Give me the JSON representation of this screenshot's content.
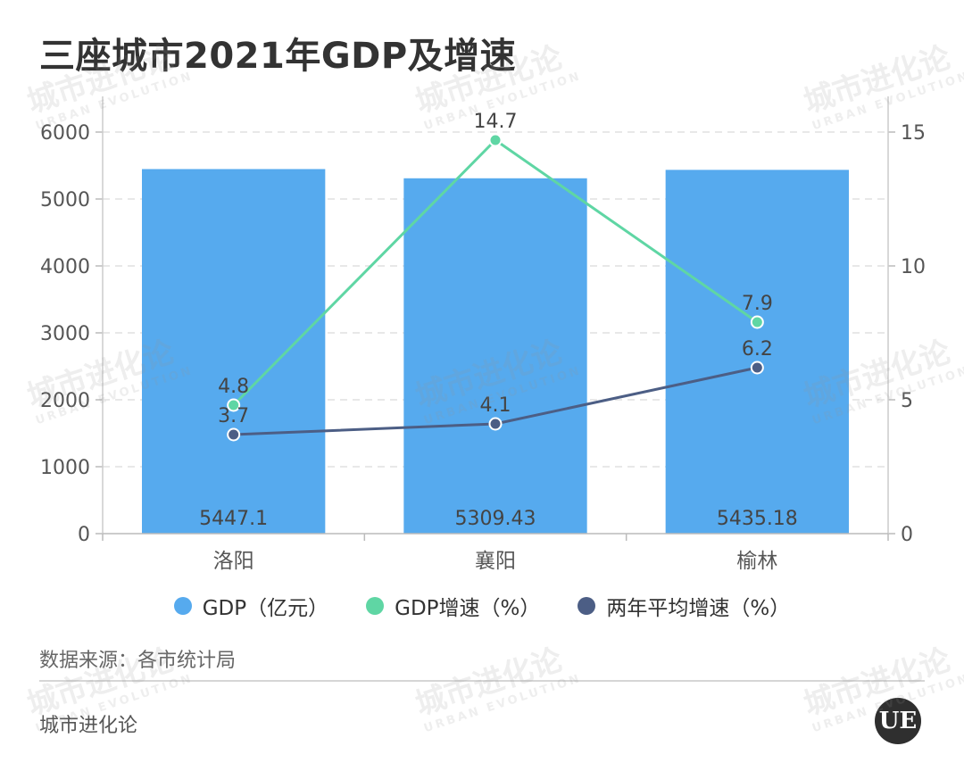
{
  "title": "三座城市2021年GDP及增速",
  "colors": {
    "gdp": "#56aaee",
    "growth": "#5fd6a4",
    "avg_growth": "#4c5e85",
    "grid": "#e0e0e0",
    "axis_text": "#555555",
    "label_text": "#444444"
  },
  "legend": {
    "gdp": "GDP（亿元）",
    "growth": "GDP增速（%）",
    "avg_growth": "两年平均增速（%）"
  },
  "source": "数据来源：各市统计局",
  "brand": "城市进化论",
  "logo_text": "UE",
  "watermark": {
    "cn": "城市进化论",
    "en": "URBAN EVOLUTION"
  },
  "chart_data": {
    "type": "bar",
    "categories": [
      "洛阳",
      "襄阳",
      "榆林"
    ],
    "series": [
      {
        "name": "GDP（亿元）",
        "type": "bar",
        "axis": "left",
        "values": [
          5447.1,
          5309.43,
          5435.18
        ],
        "labels": [
          "5447.1",
          "5309.43",
          "5435.18"
        ]
      },
      {
        "name": "GDP增速（%）",
        "type": "line",
        "axis": "right",
        "values": [
          4.8,
          14.7,
          7.9
        ],
        "labels": [
          "4.8",
          "14.7",
          "7.9"
        ]
      },
      {
        "name": "两年平均增速（%）",
        "type": "line",
        "axis": "right",
        "values": [
          3.7,
          4.1,
          6.2
        ],
        "labels": [
          "3.7",
          "4.1",
          "6.2"
        ]
      }
    ],
    "y_left": {
      "min": 0,
      "max": 6000,
      "ticks": [
        0,
        1000,
        2000,
        3000,
        4000,
        5000,
        6000
      ]
    },
    "y_right": {
      "min": 0,
      "max": 15,
      "ticks": [
        0,
        5,
        10,
        15
      ]
    },
    "grid": true,
    "legend_position": "bottom"
  }
}
